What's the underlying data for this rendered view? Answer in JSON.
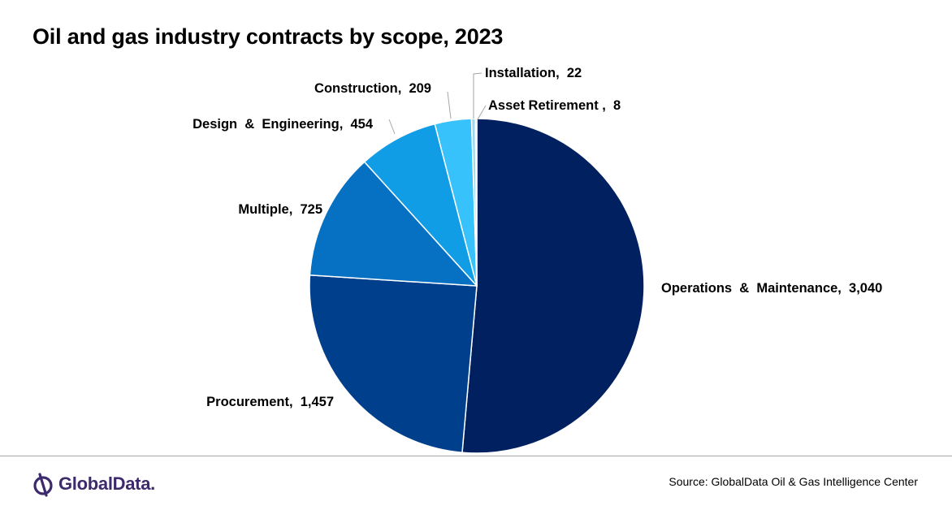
{
  "chart_data": {
    "type": "pie",
    "title": "Oil and gas industry contracts by scope, 2023",
    "slices": [
      {
        "label": "Operations & Maintenance",
        "value": 3040,
        "display": "Operations  &  Maintenance,  3,040",
        "color": "#002060"
      },
      {
        "label": "Procurement",
        "value": 1457,
        "display": "Procurement,  1,457",
        "color": "#003f8c"
      },
      {
        "label": "Multiple",
        "value": 725,
        "display": "Multiple,  725",
        "color": "#0671c2"
      },
      {
        "label": "Design & Engineering",
        "value": 454,
        "display": "Design  &  Engineering,  454",
        "color": "#109de6"
      },
      {
        "label": "Construction",
        "value": 209,
        "display": "Construction,  209",
        "color": "#38c2fb"
      },
      {
        "label": "Installation",
        "value": 22,
        "display": "Installation,  22",
        "color": "#9ad9f0"
      },
      {
        "label": "Asset Retirement",
        "value": 8,
        "display": "Asset Retirement ,  8",
        "color": "#d9d9d9"
      }
    ],
    "start_angle": "12 o'clock",
    "direction": "clockwise",
    "legend": "none (data labels)"
  },
  "footer": {
    "logo_text": "GlobalData.",
    "source": "Source:  GlobalData Oil & Gas Intelligence Center"
  },
  "colors": {
    "logo": "#3d2a6b",
    "footer_rule": "#a6a6a6",
    "leader_line": "#a6a6a6"
  }
}
